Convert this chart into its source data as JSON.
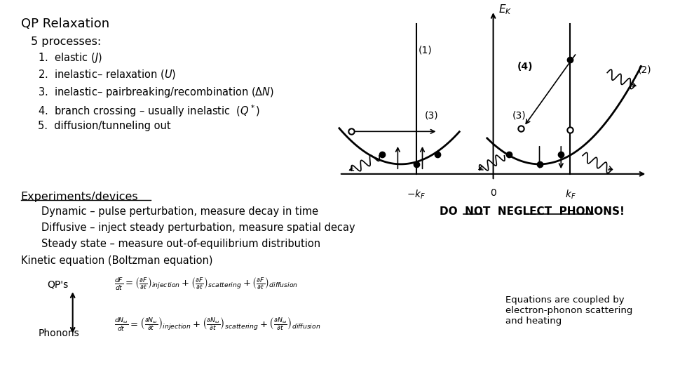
{
  "title": "QP Relaxation",
  "bg_color": "#ffffff",
  "processes_header": "5 processes:",
  "processes": [
    "elastic $(J)$",
    "inelastic– relaxation $(U)$",
    "inelastic– pairbreaking/recombination $(ΔN)$",
    "branch crossing – usually inelastic  $(Q^*)$",
    "diffusion/tunneling out"
  ],
  "experiments_label": "Experiments/devices",
  "exp_lines": [
    "Dynamic – pulse perturbation, measure decay in time",
    "Diffusive – inject steady perturbation, measure spatial decay",
    "Steady state – measure out-of-equilibrium distribution"
  ],
  "kinetic_label": "Kinetic equation (Boltzman equation)",
  "qps_label": "QP's",
  "phonons_label": "Phonons",
  "eq1": "$\\frac{dF}{dt} = \\left(\\frac{\\partial F}{\\partial t}\\right)_{injection} + \\left(\\frac{\\partial F}{\\partial t}\\right)_{scattering} + \\left(\\frac{\\partial F}{\\partial t}\\right)_{diffusion}$",
  "eq2": "$\\frac{dN_{\\omega}}{dt} = \\left(\\frac{\\partial N_{\\omega}}{\\partial t}\\right)_{injection} + \\left(\\frac{\\partial N_{\\omega}}{\\partial t}\\right)_{scattering} + \\left(\\frac{\\partial N_{\\omega}}{\\partial t}\\right)_{diffusion}$",
  "do_not_label": "DO  NOT  NEGLECT  PHONONS!",
  "coupled_label": "Equations are coupled by\nelectron-phonon scattering\nand heating",
  "text_color": "#000000"
}
